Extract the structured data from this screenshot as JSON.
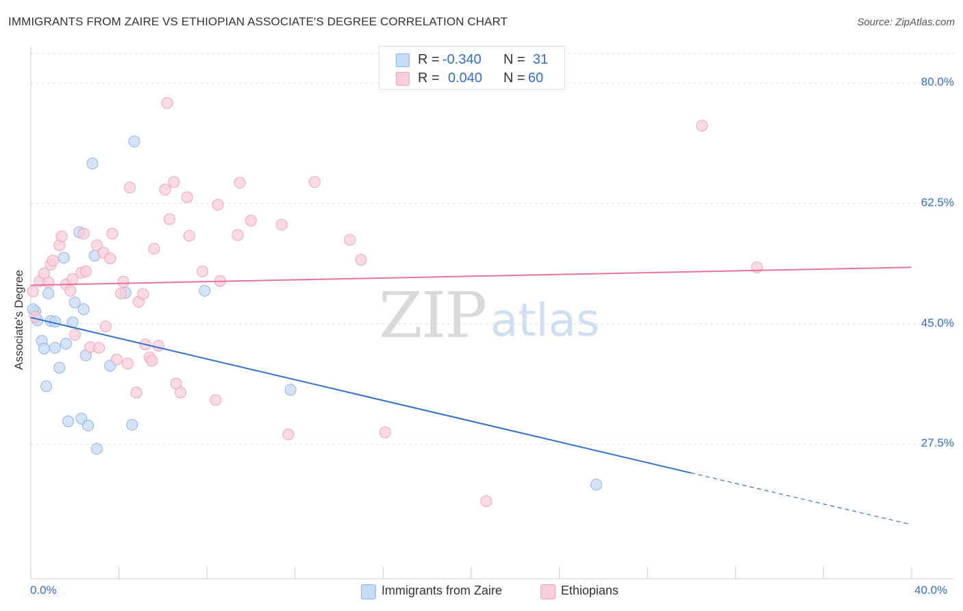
{
  "header": {
    "title": "IMMIGRANTS FROM ZAIRE VS ETHIOPIAN ASSOCIATE'S DEGREE CORRELATION CHART",
    "source": "Source: ZipAtlas.com"
  },
  "watermark": {
    "zip": "ZIP",
    "atlas": "atlas"
  },
  "legend": {
    "rows": [
      {
        "r_label": "R =",
        "r_value": "-0.340",
        "n_label": "N =",
        "n_value": "31",
        "color": "#a9c8f0"
      },
      {
        "r_label": "R =",
        "r_value": "0.040",
        "n_label": "N =",
        "n_value": "60",
        "color": "#f6b8cb"
      }
    ]
  },
  "colors": {
    "zaire_fill": "#c5daf5",
    "zaire_stroke": "#8db4e8",
    "zaire_line": "#2e70d0",
    "ethiopian_fill": "#f9cdd9",
    "ethiopian_stroke": "#eea4bb",
    "ethiopian_line": "#e8709a",
    "tick_text": "#2e6fd0",
    "grid": "#dddddd"
  },
  "chart_data": {
    "type": "scatter",
    "title": "IMMIGRANTS FROM ZAIRE VS ETHIOPIAN ASSOCIATE'S DEGREE CORRELATION CHART",
    "xlabel": "",
    "ylabel": "Associate's Degree",
    "xlim": [
      0,
      40
    ],
    "ylim": [
      10,
      83
    ],
    "x_tick_labels": [
      "0.0%",
      "40.0%"
    ],
    "y_ticks": [
      27.5,
      45.0,
      62.5,
      80.0
    ],
    "y_tick_labels": [
      "27.5%",
      "45.0%",
      "62.5%",
      "80.0%"
    ],
    "grid": true,
    "legend_position": "top-center",
    "series": [
      {
        "name": "Immigrants from Zaire",
        "r": -0.34,
        "n": 31,
        "trend": {
          "x_start": 0,
          "y_start": 45.9,
          "x_solid_end": 30.0,
          "y_solid_end": 23.3,
          "x_end": 40,
          "y_end": 15.8
        },
        "points": [
          [
            0.2,
            46.8
          ],
          [
            0.3,
            45.5
          ],
          [
            0.5,
            42.5
          ],
          [
            0.6,
            41.4
          ],
          [
            0.7,
            35.9
          ],
          [
            0.8,
            49.4
          ],
          [
            0.9,
            45.4
          ],
          [
            1.1,
            41.5
          ],
          [
            1.1,
            45.3
          ],
          [
            1.3,
            38.6
          ],
          [
            1.5,
            54.6
          ],
          [
            1.6,
            42.1
          ],
          [
            1.7,
            30.8
          ],
          [
            1.9,
            45.2
          ],
          [
            2.0,
            48.1
          ],
          [
            2.2,
            58.3
          ],
          [
            2.3,
            31.2
          ],
          [
            2.4,
            47.1
          ],
          [
            2.5,
            40.4
          ],
          [
            2.6,
            30.2
          ],
          [
            2.8,
            68.3
          ],
          [
            2.9,
            54.9
          ],
          [
            3.0,
            26.8
          ],
          [
            3.6,
            38.9
          ],
          [
            4.3,
            49.5
          ],
          [
            4.6,
            30.3
          ],
          [
            4.7,
            71.5
          ],
          [
            7.9,
            49.8
          ],
          [
            11.8,
            35.4
          ],
          [
            25.7,
            21.6
          ],
          [
            0.1,
            47.1
          ]
        ]
      },
      {
        "name": "Ethiopians",
        "r": 0.04,
        "n": 60,
        "trend": {
          "x_start": 0,
          "y_start": 50.6,
          "x_end": 40,
          "y_end": 53.2
        },
        "points": [
          [
            0.1,
            49.7
          ],
          [
            0.2,
            46.0
          ],
          [
            0.4,
            51.2
          ],
          [
            0.6,
            52.3
          ],
          [
            0.8,
            51.0
          ],
          [
            0.9,
            53.6
          ],
          [
            1.0,
            54.2
          ],
          [
            1.3,
            56.4
          ],
          [
            1.4,
            57.7
          ],
          [
            1.6,
            50.7
          ],
          [
            1.8,
            49.8
          ],
          [
            1.9,
            51.5
          ],
          [
            2.0,
            43.4
          ],
          [
            2.3,
            52.4
          ],
          [
            2.4,
            58.1
          ],
          [
            2.5,
            52.6
          ],
          [
            2.7,
            41.6
          ],
          [
            3.0,
            56.4
          ],
          [
            3.1,
            41.5
          ],
          [
            3.3,
            55.3
          ],
          [
            3.4,
            44.6
          ],
          [
            3.6,
            54.5
          ],
          [
            3.7,
            58.1
          ],
          [
            3.9,
            39.8
          ],
          [
            4.1,
            49.4
          ],
          [
            4.2,
            51.1
          ],
          [
            4.4,
            39.2
          ],
          [
            4.5,
            64.8
          ],
          [
            4.8,
            35.0
          ],
          [
            4.9,
            48.2
          ],
          [
            5.1,
            49.3
          ],
          [
            5.2,
            42.0
          ],
          [
            5.4,
            40.1
          ],
          [
            5.5,
            39.6
          ],
          [
            5.6,
            55.9
          ],
          [
            5.8,
            41.8
          ],
          [
            6.1,
            64.5
          ],
          [
            6.3,
            60.2
          ],
          [
            6.5,
            65.6
          ],
          [
            6.6,
            36.3
          ],
          [
            6.8,
            35.0
          ],
          [
            7.1,
            63.4
          ],
          [
            7.2,
            57.8
          ],
          [
            7.8,
            52.6
          ],
          [
            8.4,
            33.9
          ],
          [
            8.5,
            62.3
          ],
          [
            8.6,
            51.2
          ],
          [
            9.4,
            57.9
          ],
          [
            9.5,
            65.5
          ],
          [
            10.0,
            60.0
          ],
          [
            11.4,
            59.4
          ],
          [
            11.7,
            28.9
          ],
          [
            12.9,
            65.6
          ],
          [
            14.5,
            57.2
          ],
          [
            15.0,
            54.3
          ],
          [
            16.1,
            29.2
          ],
          [
            20.7,
            19.2
          ],
          [
            30.5,
            73.8
          ],
          [
            33.0,
            53.2
          ],
          [
            6.2,
            77.1
          ]
        ]
      }
    ]
  },
  "bottom_legend": [
    {
      "label": "Immigrants from Zaire"
    },
    {
      "label": "Ethiopians"
    }
  ]
}
